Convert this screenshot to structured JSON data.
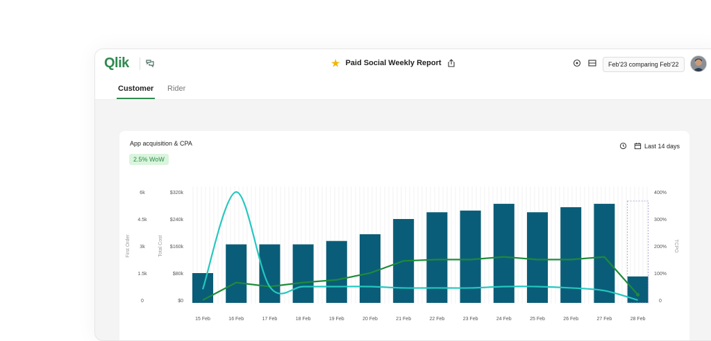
{
  "app": {
    "logo": "Qlik"
  },
  "header": {
    "report_title": "Paid Social Weekly Report",
    "compare": "Feb'23 comparing Feb'22"
  },
  "tabs": [
    {
      "label": "Customer",
      "active": true
    },
    {
      "label": "Rider",
      "active": false
    }
  ],
  "card": {
    "title": "App acquisition & CPA",
    "badge": "2.5% WoW",
    "range": "Last 14 days"
  },
  "colors": {
    "bar": "#0a5d78",
    "line_green": "#1f8a3a",
    "line_teal": "#25c7bf",
    "accent": "#2f8a4f"
  },
  "chart_data": {
    "type": "bar",
    "categories": [
      "15 Feb",
      "16 Feb",
      "17 Feb",
      "18 Feb",
      "19 Feb",
      "20 Feb",
      "21 Feb",
      "22 Feb",
      "23 Feb",
      "24 Feb",
      "25 Feb",
      "26 Feb",
      "27 Feb",
      "28 Feb"
    ],
    "series": [
      {
        "values": [
          80000,
          165000,
          165000,
          165000,
          175000,
          195000,
          240000,
          260000,
          265000,
          285000,
          260000,
          275000,
          285000,
          70000
        ]
      },
      {
        "values": [
          0,
          65,
          50,
          65,
          75,
          100,
          145,
          150,
          150,
          160,
          150,
          150,
          160,
          20
        ]
      },
      {
        "values": [
          40,
          400,
          50,
          50,
          50,
          50,
          45,
          45,
          45,
          50,
          50,
          45,
          35,
          0
        ]
      }
    ],
    "axes": {
      "left_outer": {
        "label": "First Order",
        "ticks": [
          "6k",
          "4.5k",
          "3k",
          "1.5k",
          "0"
        ]
      },
      "left_inner": {
        "label": "Total Cost",
        "ticks": [
          "$320k",
          "$240k",
          "$160k",
          "$80k",
          "$0"
        ],
        "range": [
          0,
          320000
        ]
      },
      "right": {
        "label": "TCPO",
        "ticks": [
          "400%",
          "300%",
          "200%",
          "100%",
          "0"
        ],
        "range": [
          0,
          400
        ]
      }
    }
  }
}
